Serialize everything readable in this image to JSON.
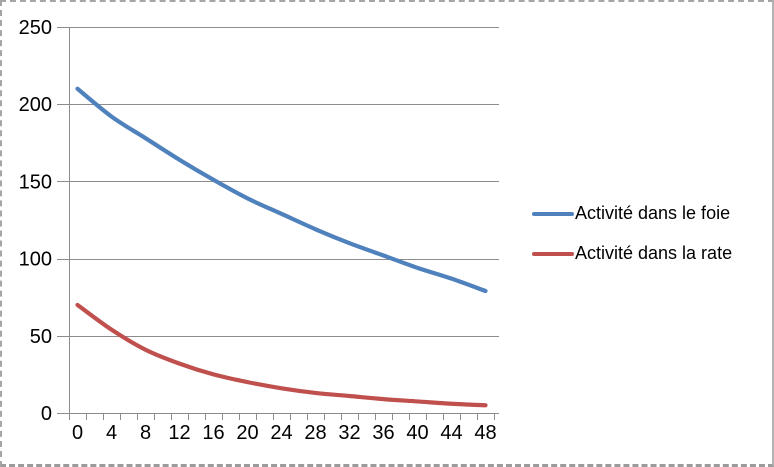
{
  "chart_data": {
    "type": "line",
    "title": "",
    "x": [
      0,
      4,
      8,
      12,
      16,
      20,
      24,
      28,
      32,
      36,
      40,
      44,
      48
    ],
    "series": [
      {
        "name": "Activité dans le foie",
        "color": "#4F81BD",
        "values": [
          210,
          192,
          178,
          164,
          151,
          139,
          129,
          119,
          110,
          102,
          94,
          87,
          79
        ]
      },
      {
        "name": "Activité dans la rate",
        "color": "#C0504D",
        "values": [
          70,
          54,
          41,
          32,
          25,
          20,
          16,
          13,
          11,
          9,
          7.5,
          6,
          5
        ]
      }
    ],
    "xlabel": "",
    "ylabel": "",
    "ylim": [
      0,
      250
    ],
    "y_ticks": [
      0,
      50,
      100,
      150,
      200,
      250
    ],
    "x_tick_labels": [
      "0",
      "4",
      "8",
      "12",
      "16",
      "20",
      "24",
      "28",
      "32",
      "36",
      "40",
      "44",
      "48"
    ],
    "x_minor_tick_step": 2,
    "grid": "horizontal",
    "legend_position": "right",
    "line_style": "smooth"
  },
  "colors": {
    "series_foie": "#4F81BD",
    "series_rate": "#C0504D",
    "axis_and_grid": "#8C8C8C",
    "tick_label_text": "#000000",
    "background": "#FFFFFF",
    "sheet_border": "#A6A6A6"
  }
}
